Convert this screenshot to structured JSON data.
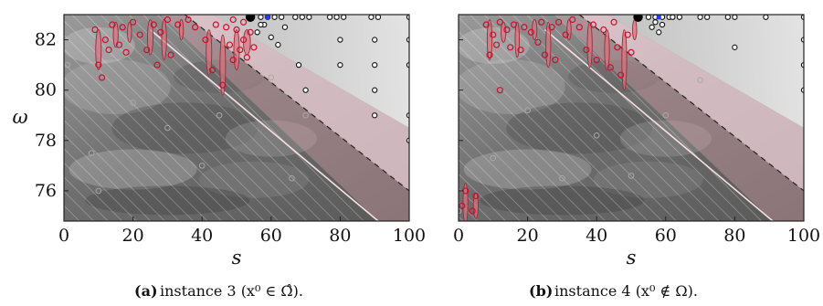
{
  "chart_data": [
    {
      "type": "scatter",
      "panel_label": "(a)",
      "caption_text": "instance 3 (x⁰ ∈ Ω̂).",
      "xlabel": "s",
      "ylabel": "ω",
      "xlim": [
        0,
        100
      ],
      "ylim": [
        74.8,
        83.0
      ],
      "xticks": [
        0,
        20,
        40,
        60,
        80,
        100
      ],
      "yticks": [
        76,
        78,
        80,
        82
      ],
      "show_y_axis_labels": true,
      "boundary_lines": {
        "dashed": [
          [
            35,
            83.0
          ],
          [
            100,
            76.0
          ]
        ],
        "solid_light": [
          [
            25,
            82.4
          ],
          [
            91,
            74.8
          ]
        ]
      },
      "ellipses": [
        {
          "x": 10,
          "y": 81.6,
          "h": 1.6,
          "w": 1.6
        },
        {
          "x": 15,
          "y": 82.2,
          "h": 1.0,
          "w": 1.4
        },
        {
          "x": 19,
          "y": 82.3,
          "h": 0.8,
          "w": 1.2
        },
        {
          "x": 25,
          "y": 82.1,
          "h": 1.4,
          "w": 1.6
        },
        {
          "x": 29,
          "y": 82.0,
          "h": 1.6,
          "w": 1.4
        },
        {
          "x": 34,
          "y": 82.4,
          "h": 0.8,
          "w": 1.2
        },
        {
          "x": 42,
          "y": 81.5,
          "h": 1.8,
          "w": 1.6
        },
        {
          "x": 46,
          "y": 81.0,
          "h": 2.4,
          "w": 1.6
        },
        {
          "x": 50,
          "y": 81.6,
          "h": 1.6,
          "w": 1.6
        },
        {
          "x": 53,
          "y": 81.9,
          "h": 1.0,
          "w": 2.0
        }
      ],
      "red_points": [
        [
          9,
          82.4
        ],
        [
          10,
          81.0
        ],
        [
          11,
          80.5
        ],
        [
          12,
          82.0
        ],
        [
          13,
          81.6
        ],
        [
          14,
          82.6
        ],
        [
          16,
          81.8
        ],
        [
          17,
          82.5
        ],
        [
          18,
          81.5
        ],
        [
          20,
          82.7
        ],
        [
          22,
          82.2
        ],
        [
          24,
          81.6
        ],
        [
          26,
          82.6
        ],
        [
          27,
          81.0
        ],
        [
          28,
          82.3
        ],
        [
          30,
          82.8
        ],
        [
          31,
          81.4
        ],
        [
          33,
          82.6
        ],
        [
          36,
          82.8
        ],
        [
          38,
          82.5
        ],
        [
          41,
          82.0
        ],
        [
          43,
          80.8
        ],
        [
          44,
          82.6
        ],
        [
          46,
          80.2
        ],
        [
          47,
          82.5
        ],
        [
          48,
          81.8
        ],
        [
          49,
          81.2
        ],
        [
          50,
          82.4
        ],
        [
          51,
          81.6
        ],
        [
          52,
          82.0
        ],
        [
          53,
          81.3
        ],
        [
          54,
          82.3
        ],
        [
          55,
          81.7
        ],
        [
          52,
          82.7
        ],
        [
          49,
          82.8
        ]
      ],
      "gray_points": [
        [
          1,
          81.0
        ],
        [
          20,
          79.5
        ],
        [
          45,
          79.0
        ],
        [
          60,
          80.5
        ],
        [
          8,
          77.5
        ],
        [
          40,
          77.0
        ],
        [
          30,
          78.5
        ],
        [
          10,
          76.0
        ],
        [
          66,
          76.5
        ],
        [
          70,
          79.0
        ]
      ],
      "black_points": [
        [
          57,
          82.9
        ],
        [
          59,
          82.9
        ],
        [
          61,
          82.9
        ],
        [
          63,
          82.9
        ],
        [
          67,
          82.9
        ],
        [
          69,
          82.9
        ],
        [
          71,
          82.9
        ],
        [
          77,
          82.9
        ],
        [
          79,
          82.9
        ],
        [
          81,
          82.9
        ],
        [
          89,
          82.9
        ],
        [
          91,
          82.9
        ],
        [
          100,
          82.9
        ],
        [
          60,
          82.1
        ],
        [
          64,
          82.5
        ],
        [
          62,
          81.8
        ],
        [
          80,
          82.0
        ],
        [
          90,
          82.0
        ],
        [
          100,
          82.0
        ],
        [
          68,
          81.0
        ],
        [
          80,
          81.0
        ],
        [
          90,
          81.0
        ],
        [
          100,
          81.0
        ],
        [
          70,
          80.0
        ],
        [
          90,
          80.0
        ],
        [
          90,
          79.0
        ],
        [
          100,
          79.0
        ],
        [
          100,
          78.0
        ],
        [
          58,
          82.6
        ],
        [
          57,
          82.6
        ],
        [
          56,
          82.3
        ]
      ],
      "big_points": [
        [
          54,
          82.9
        ]
      ],
      "blue_points": [
        [
          59,
          82.9
        ]
      ]
    },
    {
      "type": "scatter",
      "panel_label": "(b)",
      "caption_text": "instance 4 (x⁰ ∉ Ω).",
      "xlabel": "s",
      "ylabel": "",
      "xlim": [
        0,
        100
      ],
      "ylim": [
        74.8,
        83.0
      ],
      "xticks": [
        0,
        20,
        40,
        60,
        80,
        100
      ],
      "yticks": [
        76,
        78,
        80,
        82
      ],
      "show_y_axis_labels": false,
      "boundary_lines": {
        "dashed": [
          [
            35,
            83.0
          ],
          [
            100,
            76.0
          ]
        ],
        "solid_light": [
          [
            25,
            82.4
          ],
          [
            91,
            74.8
          ]
        ]
      },
      "ellipses": [
        {
          "x": 2,
          "y": 75.5,
          "h": 1.6,
          "w": 1.4
        },
        {
          "x": 5,
          "y": 75.4,
          "h": 1.0,
          "w": 1.4
        },
        {
          "x": 9,
          "y": 82.0,
          "h": 1.6,
          "w": 1.4
        },
        {
          "x": 13,
          "y": 82.3,
          "h": 0.8,
          "w": 1.4
        },
        {
          "x": 17,
          "y": 82.0,
          "h": 1.4,
          "w": 1.2
        },
        {
          "x": 22,
          "y": 82.4,
          "h": 0.8,
          "w": 1.4
        },
        {
          "x": 26,
          "y": 81.8,
          "h": 1.8,
          "w": 1.4
        },
        {
          "x": 32,
          "y": 82.4,
          "h": 0.8,
          "w": 1.2
        },
        {
          "x": 38,
          "y": 81.8,
          "h": 1.8,
          "w": 1.4
        },
        {
          "x": 43,
          "y": 81.6,
          "h": 1.6,
          "w": 1.4
        },
        {
          "x": 48,
          "y": 81.2,
          "h": 2.4,
          "w": 1.4
        },
        {
          "x": 51,
          "y": 82.4,
          "h": 0.8,
          "w": 1.2
        }
      ],
      "red_points": [
        [
          1,
          75.4
        ],
        [
          2,
          76.0
        ],
        [
          4,
          75.2
        ],
        [
          5,
          75.8
        ],
        [
          8,
          82.6
        ],
        [
          9,
          81.4
        ],
        [
          10,
          82.2
        ],
        [
          11,
          81.8
        ],
        [
          12,
          82.7
        ],
        [
          14,
          82.4
        ],
        [
          15,
          81.7
        ],
        [
          16,
          82.6
        ],
        [
          18,
          81.6
        ],
        [
          19,
          82.5
        ],
        [
          21,
          82.3
        ],
        [
          23,
          81.9
        ],
        [
          24,
          82.7
        ],
        [
          25,
          81.4
        ],
        [
          27,
          82.5
        ],
        [
          28,
          81.2
        ],
        [
          29,
          82.7
        ],
        [
          31,
          82.2
        ],
        [
          33,
          82.8
        ],
        [
          35,
          82.5
        ],
        [
          37,
          81.6
        ],
        [
          39,
          82.6
        ],
        [
          40,
          81.2
        ],
        [
          42,
          82.4
        ],
        [
          44,
          80.9
        ],
        [
          45,
          82.7
        ],
        [
          46,
          81.7
        ],
        [
          47,
          80.6
        ],
        [
          49,
          82.2
        ],
        [
          50,
          81.5
        ],
        [
          12,
          80.0
        ]
      ],
      "gray_points": [
        [
          1,
          83.0
        ],
        [
          1,
          81.8
        ],
        [
          20,
          79.2
        ],
        [
          40,
          78.2
        ],
        [
          10,
          77.3
        ],
        [
          60,
          79.0
        ],
        [
          30,
          76.5
        ],
        [
          70,
          80.4
        ],
        [
          50,
          76.6
        ],
        [
          0,
          75.2
        ]
      ],
      "black_points": [
        [
          55,
          82.9
        ],
        [
          57,
          82.9
        ],
        [
          59,
          82.9
        ],
        [
          61,
          82.9
        ],
        [
          62,
          82.9
        ],
        [
          64,
          82.9
        ],
        [
          70,
          82.9
        ],
        [
          72,
          82.9
        ],
        [
          78,
          82.9
        ],
        [
          80,
          82.9
        ],
        [
          89,
          82.9
        ],
        [
          100,
          82.9
        ],
        [
          56,
          82.5
        ],
        [
          57,
          82.7
        ],
        [
          58,
          82.3
        ],
        [
          59,
          82.6
        ],
        [
          80,
          81.7
        ],
        [
          100,
          82.0
        ],
        [
          100,
          81.0
        ],
        [
          100,
          80.0
        ]
      ],
      "big_points": [
        [
          52,
          82.9
        ]
      ],
      "blue_points": [
        [
          58,
          82.9
        ]
      ]
    }
  ]
}
